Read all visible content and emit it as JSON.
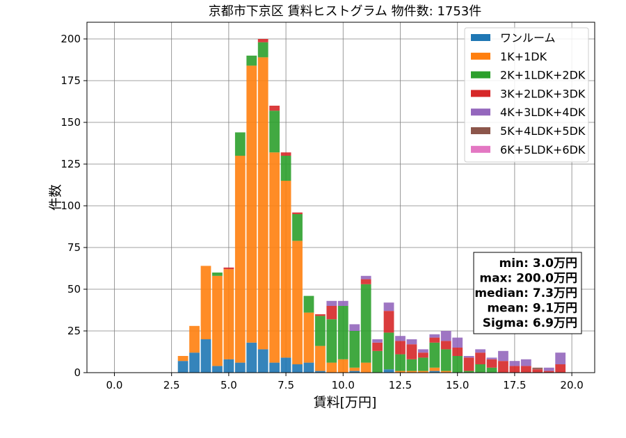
{
  "chart_data": {
    "type": "bar",
    "stacked": true,
    "title": "京都市下京区 賃料ヒストグラム 物件数: 1753件",
    "xlabel": "賃料[万円]",
    "ylabel": "件数",
    "xlim": [
      -1.2,
      21.0
    ],
    "ylim": [
      0,
      210
    ],
    "xticks": [
      0.0,
      2.5,
      5.0,
      7.5,
      10.0,
      12.5,
      15.0,
      17.5,
      20.0
    ],
    "xtick_labels": [
      "0.0",
      "2.5",
      "5.0",
      "7.5",
      "10.0",
      "12.5",
      "15.0",
      "17.5",
      "20.0"
    ],
    "yticks": [
      0,
      25,
      50,
      75,
      100,
      125,
      150,
      175,
      200
    ],
    "ytick_labels": [
      "0",
      "25",
      "50",
      "75",
      "100",
      "125",
      "150",
      "175",
      "200"
    ],
    "grid": true,
    "legend_position": "top-right",
    "bin_width": 0.5,
    "x": [
      3.0,
      3.5,
      4.0,
      4.5,
      5.0,
      5.5,
      6.0,
      6.5,
      7.0,
      7.5,
      8.0,
      8.5,
      9.0,
      9.5,
      10.0,
      10.5,
      11.0,
      11.5,
      12.0,
      12.5,
      13.0,
      13.5,
      14.0,
      14.5,
      15.0,
      15.5,
      16.0,
      16.5,
      17.0,
      17.5,
      18.0,
      18.5,
      19.0,
      19.5
    ],
    "series": [
      {
        "name": "ワンルーム",
        "color": "#1f77b4",
        "values": [
          7,
          12,
          20,
          4,
          8,
          6,
          18,
          14,
          6,
          9,
          5,
          6,
          1,
          0,
          0,
          1,
          0,
          0,
          2,
          0,
          0,
          0,
          1,
          0,
          0,
          0,
          0,
          0,
          0,
          0,
          0,
          0,
          0,
          0
        ]
      },
      {
        "name": "1K+1DK",
        "color": "#ff7f0e",
        "values": [
          3,
          16,
          44,
          54,
          54,
          124,
          166,
          175,
          126,
          106,
          74,
          30,
          15,
          6,
          8,
          2,
          6,
          0,
          0,
          1,
          1,
          1,
          2,
          1,
          0,
          0,
          0,
          0,
          0,
          0,
          0,
          0,
          0,
          0
        ]
      },
      {
        "name": "2K+1LDK+2DK",
        "color": "#2ca02c",
        "values": [
          0,
          0,
          0,
          2,
          0,
          14,
          6,
          9,
          25,
          15,
          16,
          10,
          18,
          26,
          32,
          22,
          47,
          13,
          22,
          10,
          7,
          8,
          15,
          13,
          10,
          1,
          5,
          3,
          0,
          0,
          0,
          0,
          0,
          0
        ]
      },
      {
        "name": "3K+2LDK+3DK",
        "color": "#d62728",
        "values": [
          0,
          0,
          0,
          0,
          1,
          0,
          0,
          2,
          3,
          2,
          1,
          0,
          1,
          8,
          0,
          0,
          3,
          5,
          13,
          8,
          9,
          3,
          3,
          5,
          5,
          8,
          7,
          5,
          7,
          4,
          4,
          2,
          1,
          5
        ]
      },
      {
        "name": "4K+3LDK+4DK",
        "color": "#9467bd",
        "values": [
          0,
          0,
          0,
          0,
          0,
          0,
          0,
          0,
          0,
          0,
          0,
          0,
          0,
          3,
          3,
          4,
          2,
          2,
          5,
          3,
          3,
          2,
          2,
          6,
          6,
          1,
          2,
          1,
          6,
          3,
          4,
          0,
          2,
          7
        ]
      },
      {
        "name": "5K+4LDK+5DK",
        "color": "#8c564b",
        "values": [
          0,
          0,
          0,
          0,
          0,
          0,
          0,
          0,
          0,
          0,
          0,
          0,
          0,
          0,
          0,
          0,
          0,
          0,
          0,
          0,
          0,
          0,
          0,
          0,
          0,
          0,
          0,
          0,
          0,
          0,
          0,
          1,
          0,
          0
        ]
      },
      {
        "name": "6K+5LDK+6DK",
        "color": "#e377c2",
        "values": [
          0,
          0,
          0,
          0,
          0,
          0,
          0,
          0,
          0,
          0,
          0,
          0,
          0,
          0,
          0,
          0,
          0,
          0,
          0,
          0,
          0,
          0,
          0,
          0,
          0,
          0,
          0,
          0,
          0,
          0,
          0,
          0,
          0,
          0
        ]
      }
    ],
    "annotation": [
      "min: 3.0万円",
      "max: 200.0万円",
      "median: 7.3万円",
      "mean: 9.1万円",
      "Sigma: 6.9万円"
    ]
  }
}
